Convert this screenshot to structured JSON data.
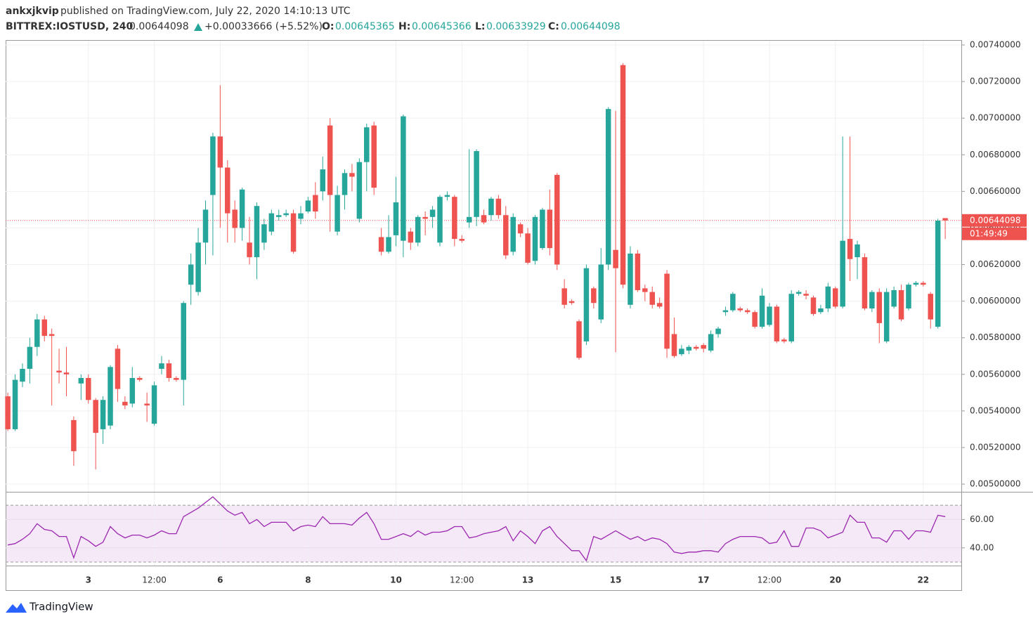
{
  "header": {
    "user": "ankxjkvip",
    "published": "published on TradingView.com, July 22, 2020 14:10:13 UTC",
    "symbol": "BITTREX:IOSTUSD, 240",
    "change": "+0.00033666 (+5.52%)",
    "o_label": "O:",
    "h_label": "H:",
    "l_label": "L:",
    "c_label": "C:"
  },
  "countdown": "01:49:49",
  "footer": {
    "brand": "TradingView"
  },
  "chart_data": [
    {
      "type": "candlestick",
      "up_color": "#26a69a",
      "down_color": "#ef5350",
      "grid": true,
      "last_price_line": true,
      "xlim": [
        -0.3,
        130.2
      ],
      "ylim": [
        0.004958,
        0.007423
      ],
      "xticks": [
        {
          "value": 11,
          "label": "3"
        },
        {
          "value": 20,
          "label": "12:00"
        },
        {
          "value": 29,
          "label": "6"
        },
        {
          "value": 41,
          "label": "8"
        },
        {
          "value": 53,
          "label": "10"
        },
        {
          "value": 62,
          "label": "12:00"
        },
        {
          "value": 71,
          "label": "13"
        },
        {
          "value": 83,
          "label": "15"
        },
        {
          "value": 95,
          "label": "17"
        },
        {
          "value": 104,
          "label": "12:00"
        },
        {
          "value": 113,
          "label": "20"
        },
        {
          "value": 125,
          "label": "22"
        }
      ],
      "yticks": [
        {
          "value": 0.0074,
          "label": "0.00740000"
        },
        {
          "value": 0.0072,
          "label": "0.00720000"
        },
        {
          "value": 0.007,
          "label": "0.00700000"
        },
        {
          "value": 0.0068,
          "label": "0.00680000"
        },
        {
          "value": 0.0066,
          "label": "0.00660000"
        },
        {
          "value": 0.0064,
          "label": "0.00640000"
        },
        {
          "value": 0.0062,
          "label": "0.00620000"
        },
        {
          "value": 0.006,
          "label": "0.00600000"
        },
        {
          "value": 0.0058,
          "label": "0.00580000"
        },
        {
          "value": 0.0056,
          "label": "0.00560000"
        },
        {
          "value": 0.0054,
          "label": "0.00540000"
        },
        {
          "value": 0.0052,
          "label": "0.00520000"
        },
        {
          "value": 0.005,
          "label": "0.00500000"
        }
      ],
      "open": [
        0.00548,
        0.0053,
        0.00556,
        0.00563,
        0.00575,
        0.0059,
        0.00582,
        0.00562,
        0.00561,
        0.00535,
        0.00555,
        0.00558,
        0.00546,
        0.0053,
        0.00532,
        0.00574,
        0.00545,
        0.00544,
        0.00558,
        0.00544,
        0.00533,
        0.00563,
        0.00566,
        0.00558,
        0.00557,
        0.00609,
        0.00605,
        0.00632,
        0.00658,
        0.0069,
        0.00673,
        0.0065,
        0.0064,
        0.00632,
        0.00624,
        0.00632,
        0.00638,
        0.00646,
        0.00647,
        0.00648,
        0.00645,
        0.00649,
        0.00658,
        0.0066,
        0.00696,
        0.00638,
        0.00658,
        0.0067,
        0.00645,
        0.00676,
        0.00696,
        0.00635,
        0.00627,
        0.00636,
        0.00633,
        0.00638,
        0.00632,
        0.00646,
        0.00646,
        0.00632,
        0.00657,
        0.00657,
        0.00634,
        0.00643,
        0.00646,
        0.00647,
        0.00647,
        0.00656,
        0.00647,
        0.00627,
        0.00642,
        0.00637,
        0.00622,
        0.00629,
        0.0065,
        0.00669,
        0.00607,
        0.006,
        0.00589,
        0.00578,
        0.00607,
        0.0059,
        0.0062,
        0.00628,
        0.00729,
        0.00598,
        0.00626,
        0.00607,
        0.00605,
        0.00599,
        0.00615,
        0.00582,
        0.00571,
        0.00573,
        0.00575,
        0.00576,
        0.00573,
        0.00582,
        0.00594,
        0.00595,
        0.00596,
        0.00595,
        0.00594,
        0.00586,
        0.00587,
        0.00597,
        0.00579,
        0.00578,
        0.00604,
        0.00604,
        0.00602,
        0.00594,
        0.00596,
        0.00607,
        0.00597,
        0.00634,
        0.00624,
        0.00624,
        0.00596,
        0.00605,
        0.00578,
        0.00597,
        0.00606,
        0.00596,
        0.00609,
        0.0061,
        0.00604,
        0.00586,
        0.00645365
      ],
      "high": [
        0.0055,
        0.0056,
        0.00566,
        0.0058,
        0.00593,
        0.00592,
        0.00585,
        0.00574,
        0.00575,
        0.00537,
        0.0056,
        0.0056,
        0.00547,
        0.00548,
        0.00565,
        0.00576,
        0.00548,
        0.00564,
        0.00559,
        0.0055,
        0.00556,
        0.0057,
        0.00568,
        0.00559,
        0.006,
        0.00626,
        0.0064,
        0.00655,
        0.00692,
        0.00718,
        0.00677,
        0.00655,
        0.00662,
        0.00646,
        0.00654,
        0.00645,
        0.0065,
        0.0065,
        0.0065,
        0.0065,
        0.00652,
        0.00657,
        0.00665,
        0.00679,
        0.007,
        0.00663,
        0.00672,
        0.00675,
        0.00678,
        0.00697,
        0.00698,
        0.0064,
        0.00647,
        0.00668,
        0.00702,
        0.0064,
        0.00647,
        0.00649,
        0.00652,
        0.00658,
        0.0066,
        0.00658,
        0.00636,
        0.00683,
        0.00683,
        0.0065,
        0.00657,
        0.00658,
        0.00652,
        0.00648,
        0.00643,
        0.0064,
        0.00647,
        0.00651,
        0.00661,
        0.0067,
        0.00612,
        0.00601,
        0.0059,
        0.0062,
        0.00608,
        0.00629,
        0.00706,
        0.00704,
        0.0073,
        0.0063,
        0.00628,
        0.00609,
        0.00608,
        0.00602,
        0.00617,
        0.00591,
        0.00576,
        0.00576,
        0.00576,
        0.00577,
        0.00584,
        0.00586,
        0.00597,
        0.00605,
        0.00597,
        0.00596,
        0.00595,
        0.00607,
        0.00599,
        0.00598,
        0.0058,
        0.00606,
        0.00606,
        0.00606,
        0.00603,
        0.00598,
        0.0061,
        0.00608,
        0.0069,
        0.0069,
        0.00633,
        0.00626,
        0.00606,
        0.00607,
        0.00607,
        0.00608,
        0.00609,
        0.0061,
        0.00611,
        0.00611,
        0.00605,
        0.00645,
        0.00645366
      ],
      "low": [
        0.00529,
        0.00529,
        0.00553,
        0.00555,
        0.0057,
        0.00578,
        0.00543,
        0.00555,
        0.00548,
        0.0051,
        0.00546,
        0.00544,
        0.00508,
        0.00522,
        0.0053,
        0.00545,
        0.00541,
        0.00542,
        0.00556,
        0.00534,
        0.00532,
        0.0056,
        0.00556,
        0.00556,
        0.00543,
        0.00598,
        0.00603,
        0.0062,
        0.00625,
        0.0064,
        0.00632,
        0.00632,
        0.00633,
        0.0062,
        0.00612,
        0.00628,
        0.00636,
        0.00644,
        0.00646,
        0.00626,
        0.00642,
        0.00648,
        0.00645,
        0.00655,
        0.00638,
        0.00636,
        0.0065,
        0.0066,
        0.00643,
        0.0066,
        0.00658,
        0.00625,
        0.00626,
        0.0063,
        0.00624,
        0.00628,
        0.0063,
        0.00636,
        0.0064,
        0.0063,
        0.00655,
        0.0063,
        0.00632,
        0.0064,
        0.00641,
        0.00642,
        0.00644,
        0.00645,
        0.00623,
        0.00625,
        0.00635,
        0.0062,
        0.0062,
        0.00628,
        0.00625,
        0.00617,
        0.00596,
        0.00598,
        0.00568,
        0.00576,
        0.00596,
        0.00588,
        0.00617,
        0.00572,
        0.00607,
        0.00596,
        0.00605,
        0.006,
        0.00596,
        0.00596,
        0.00569,
        0.00569,
        0.0057,
        0.00571,
        0.00573,
        0.00572,
        0.00572,
        0.0058,
        0.00592,
        0.00594,
        0.00594,
        0.00593,
        0.00585,
        0.00585,
        0.00586,
        0.00577,
        0.00577,
        0.00577,
        0.00603,
        0.00601,
        0.00592,
        0.00593,
        0.00594,
        0.00596,
        0.00596,
        0.00611,
        0.00612,
        0.00595,
        0.00594,
        0.00577,
        0.00577,
        0.00596,
        0.00589,
        0.00595,
        0.00608,
        0.00608,
        0.00585,
        0.00585,
        0.00633929
      ],
      "close": [
        0.0053,
        0.00557,
        0.00563,
        0.00575,
        0.0059,
        0.00581,
        0.00581,
        0.00561,
        0.0056,
        0.00518,
        0.00558,
        0.00546,
        0.00528,
        0.00546,
        0.00564,
        0.00552,
        0.00543,
        0.00558,
        0.00557,
        0.00543,
        0.00554,
        0.00566,
        0.00558,
        0.00557,
        0.00599,
        0.0062,
        0.00632,
        0.0065,
        0.0069,
        0.00673,
        0.00648,
        0.0064,
        0.00661,
        0.00624,
        0.00652,
        0.00642,
        0.00648,
        0.00647,
        0.00648,
        0.00627,
        0.00648,
        0.00655,
        0.00649,
        0.00672,
        0.00658,
        0.00658,
        0.0067,
        0.00668,
        0.00676,
        0.00695,
        0.00662,
        0.00627,
        0.00635,
        0.00654,
        0.00701,
        0.00632,
        0.00646,
        0.00645,
        0.0065,
        0.00657,
        0.00658,
        0.00634,
        0.00633,
        0.00646,
        0.00682,
        0.00643,
        0.00656,
        0.00647,
        0.00625,
        0.00646,
        0.00637,
        0.00621,
        0.00646,
        0.0065,
        0.00629,
        0.0062,
        0.00598,
        0.00599,
        0.00569,
        0.00618,
        0.00599,
        0.0062,
        0.00705,
        0.00618,
        0.00609,
        0.00626,
        0.00606,
        0.00605,
        0.00598,
        0.00597,
        0.00574,
        0.0057,
        0.00574,
        0.00575,
        0.00574,
        0.00574,
        0.00582,
        0.00585,
        0.00595,
        0.00604,
        0.00595,
        0.00594,
        0.00586,
        0.00603,
        0.00597,
        0.00578,
        0.00578,
        0.00604,
        0.00605,
        0.00603,
        0.00593,
        0.00596,
        0.00608,
        0.00597,
        0.00633,
        0.00623,
        0.00631,
        0.00596,
        0.00605,
        0.00588,
        0.00605,
        0.00606,
        0.0059,
        0.00609,
        0.0061,
        0.00609,
        0.0059,
        0.00644,
        0.00644098
      ]
    },
    {
      "type": "line",
      "color": "#9c27b0",
      "band": [
        30,
        70
      ],
      "band_color": "#9c27b0",
      "ylim": [
        27.5,
        79
      ],
      "yticks": [
        {
          "value": 60,
          "label": "60.00"
        },
        {
          "value": 40,
          "label": "40.00"
        }
      ],
      "values": [
        42,
        43,
        46,
        50,
        57,
        53,
        52,
        48,
        48,
        33,
        48,
        45,
        41,
        44,
        55,
        50,
        47,
        49,
        49,
        47,
        49,
        52,
        50,
        50,
        62,
        65,
        68,
        72,
        76,
        71,
        66,
        63,
        65,
        57,
        60,
        55,
        58,
        58,
        58,
        52,
        55,
        56,
        55,
        62,
        57,
        57,
        57,
        56,
        61,
        65,
        57,
        46,
        46,
        48,
        50,
        48,
        52,
        49,
        51,
        51,
        52,
        55,
        55,
        47,
        48,
        50,
        51,
        52,
        55,
        45,
        52,
        48,
        43,
        52,
        55,
        48,
        43,
        38,
        38,
        31,
        48,
        46,
        49,
        52,
        49,
        46,
        48,
        45,
        47,
        46,
        43,
        37,
        36,
        37,
        37,
        38,
        38,
        37,
        43,
        46,
        48,
        48,
        48,
        47,
        43,
        44,
        52,
        41,
        41,
        54,
        54,
        52,
        47,
        49,
        51,
        63,
        58,
        58,
        47,
        47,
        44,
        52,
        52,
        46,
        52,
        52,
        51,
        63,
        62
      ]
    }
  ]
}
